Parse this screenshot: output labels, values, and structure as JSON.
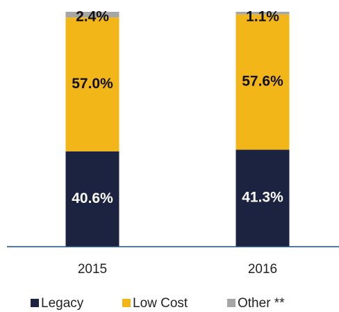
{
  "chart_data": {
    "type": "stacked_bar",
    "categories": [
      "2015",
      "2016"
    ],
    "series": [
      {
        "name": "Legacy",
        "color": "#1b2340",
        "values": [
          40.6,
          41.3
        ],
        "value_labels": [
          "40.6%",
          "41.3%"
        ]
      },
      {
        "name": "Low Cost",
        "color": "#f2b619",
        "values": [
          57.0,
          57.6
        ],
        "value_labels": [
          "57.0%",
          "57.6%"
        ]
      },
      {
        "name": "Other **",
        "color": "#a6a6a6",
        "values": [
          2.4,
          1.1
        ],
        "value_labels": [
          "2.4%",
          "1.1%"
        ]
      }
    ],
    "ylim": [
      0,
      100
    ]
  }
}
